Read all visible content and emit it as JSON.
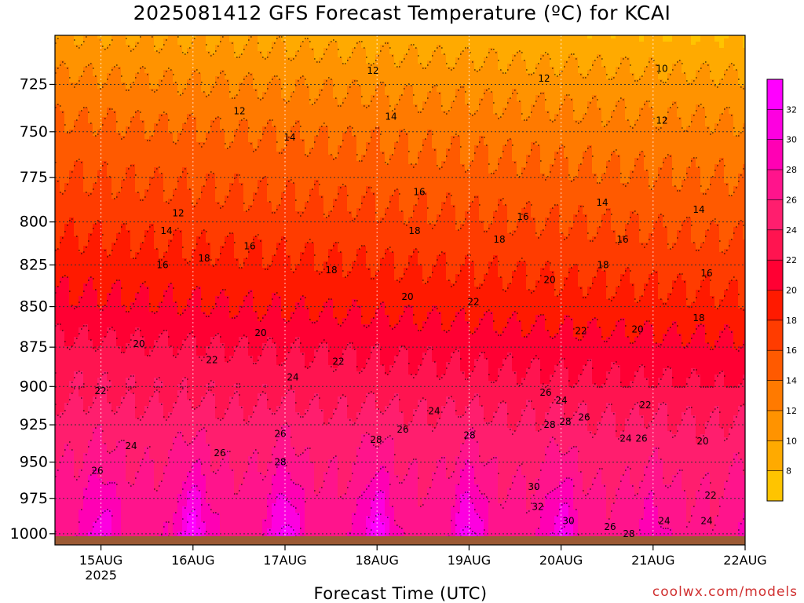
{
  "title": "2025081412 GFS Forecast Temperature (ºC) for KCAI",
  "xlabel": "Forecast Time (UTC)",
  "credit": "coolwx.com/models",
  "chart_data": {
    "type": "heatmap",
    "title": "2025081412 GFS Forecast Temperature (ºC) for KCAI",
    "xlabel": "Forecast Time (UTC)",
    "ylabel": "",
    "x_ticks": [
      "15AUG",
      "16AUG",
      "17AUG",
      "18AUG",
      "19AUG",
      "20AUG",
      "21AUG",
      "22AUG"
    ],
    "x_year_label": "2025",
    "x_range_hours_from_15AUG00": [
      -12,
      168
    ],
    "y_ticks": [
      725,
      750,
      775,
      800,
      825,
      850,
      875,
      900,
      925,
      950,
      975,
      1000
    ],
    "y_range_hPa": [
      700,
      1008
    ],
    "y_scale": "log-pressure (inverted)",
    "grid": true,
    "colorbar": {
      "ticks": [
        8,
        10,
        12,
        14,
        16,
        18,
        20,
        22,
        24,
        26,
        28,
        30,
        32
      ],
      "colors": [
        "#ffc400",
        "#ffaa00",
        "#ff9300",
        "#ff7a00",
        "#ff5a00",
        "#ff3c00",
        "#ff1a00",
        "#ff0033",
        "#ff1450",
        "#ff1e6e",
        "#ff148c",
        "#ff00b4",
        "#fd00e0",
        "#ff00ff"
      ]
    },
    "surface_color": "#9c5a34",
    "base_temperature_profile": [
      {
        "p": 700,
        "t": 9
      },
      {
        "p": 725,
        "t": 11.5
      },
      {
        "p": 750,
        "t": 13.5
      },
      {
        "p": 775,
        "t": 15
      },
      {
        "p": 800,
        "t": 16.5
      },
      {
        "p": 825,
        "t": 18
      },
      {
        "p": 850,
        "t": 19.5
      },
      {
        "p": 875,
        "t": 21.5
      },
      {
        "p": 900,
        "t": 23
      },
      {
        "p": 925,
        "t": 24.5
      },
      {
        "p": 950,
        "t": 25.5
      },
      {
        "p": 975,
        "t": 26.5
      },
      {
        "p": 1000,
        "t": 27
      }
    ],
    "afternoon_surface_maxima": [
      {
        "label": "15AUG",
        "t": 32
      },
      {
        "label": "16AUG",
        "t": 34
      },
      {
        "label": "17AUG",
        "t": 34
      },
      {
        "label": "18AUG",
        "t": 34
      },
      {
        "label": "19AUG",
        "t": 34
      },
      {
        "label": "20AUG",
        "t": 33
      },
      {
        "label": "21AUG",
        "t": 30
      }
    ],
    "contour_labels": [
      {
        "v": "12",
        "x": 475,
        "p": 718
      },
      {
        "v": "12",
        "x": 693,
        "p": 722
      },
      {
        "v": "10",
        "x": 843,
        "p": 717
      },
      {
        "v": "12",
        "x": 305,
        "p": 739
      },
      {
        "v": "14",
        "x": 498,
        "p": 742
      },
      {
        "v": "12",
        "x": 843,
        "p": 744
      },
      {
        "v": "14",
        "x": 369,
        "p": 753
      },
      {
        "v": "16",
        "x": 534,
        "p": 783
      },
      {
        "v": "14",
        "x": 767,
        "p": 789
      },
      {
        "v": "14",
        "x": 890,
        "p": 793
      },
      {
        "v": "12",
        "x": 227,
        "p": 795
      },
      {
        "v": "16",
        "x": 666,
        "p": 797
      },
      {
        "v": "14",
        "x": 212,
        "p": 805
      },
      {
        "v": "18",
        "x": 528,
        "p": 805
      },
      {
        "v": "16",
        "x": 318,
        "p": 814
      },
      {
        "v": "18",
        "x": 636,
        "p": 810
      },
      {
        "v": "16",
        "x": 793,
        "p": 810
      },
      {
        "v": "18",
        "x": 260,
        "p": 821
      },
      {
        "v": "16",
        "x": 207,
        "p": 825
      },
      {
        "v": "18",
        "x": 422,
        "p": 828
      },
      {
        "v": "18",
        "x": 768,
        "p": 825
      },
      {
        "v": "16",
        "x": 900,
        "p": 830
      },
      {
        "v": "20",
        "x": 700,
        "p": 834
      },
      {
        "v": "20",
        "x": 519,
        "p": 844
      },
      {
        "v": "22",
        "x": 603,
        "p": 847
      },
      {
        "v": "18",
        "x": 890,
        "p": 857
      },
      {
        "v": "20",
        "x": 332,
        "p": 866
      },
      {
        "v": "22",
        "x": 740,
        "p": 865
      },
      {
        "v": "20",
        "x": 812,
        "p": 864
      },
      {
        "v": "20",
        "x": 177,
        "p": 873
      },
      {
        "v": "22",
        "x": 270,
        "p": 883
      },
      {
        "v": "22",
        "x": 431,
        "p": 884
      },
      {
        "v": "24",
        "x": 373,
        "p": 894
      },
      {
        "v": "22",
        "x": 128,
        "p": 903
      },
      {
        "v": "26",
        "x": 695,
        "p": 904
      },
      {
        "v": "24",
        "x": 715,
        "p": 909
      },
      {
        "v": "22",
        "x": 822,
        "p": 912
      },
      {
        "v": "24",
        "x": 553,
        "p": 916
      },
      {
        "v": "26",
        "x": 744,
        "p": 920
      },
      {
        "v": "28",
        "x": 700,
        "p": 925
      },
      {
        "v": "28",
        "x": 720,
        "p": 923
      },
      {
        "v": "26",
        "x": 513,
        "p": 928
      },
      {
        "v": "26",
        "x": 357,
        "p": 931
      },
      {
        "v": "28",
        "x": 598,
        "p": 932
      },
      {
        "v": "24",
        "x": 797,
        "p": 934
      },
      {
        "v": "26",
        "x": 817,
        "p": 934
      },
      {
        "v": "28",
        "x": 479,
        "p": 935
      },
      {
        "v": "20",
        "x": 895,
        "p": 936
      },
      {
        "v": "24",
        "x": 167,
        "p": 939
      },
      {
        "v": "26",
        "x": 280,
        "p": 944
      },
      {
        "v": "28",
        "x": 357,
        "p": 950
      },
      {
        "v": "26",
        "x": 124,
        "p": 956
      },
      {
        "v": "30",
        "x": 680,
        "p": 967
      },
      {
        "v": "22",
        "x": 905,
        "p": 973
      },
      {
        "v": "32",
        "x": 685,
        "p": 981
      },
      {
        "v": "30",
        "x": 724,
        "p": 991
      },
      {
        "v": "24",
        "x": 846,
        "p": 991
      },
      {
        "v": "24",
        "x": 900,
        "p": 991
      },
      {
        "v": "26",
        "x": 777,
        "p": 995
      },
      {
        "v": "28",
        "x": 801,
        "p": 1000
      }
    ]
  }
}
